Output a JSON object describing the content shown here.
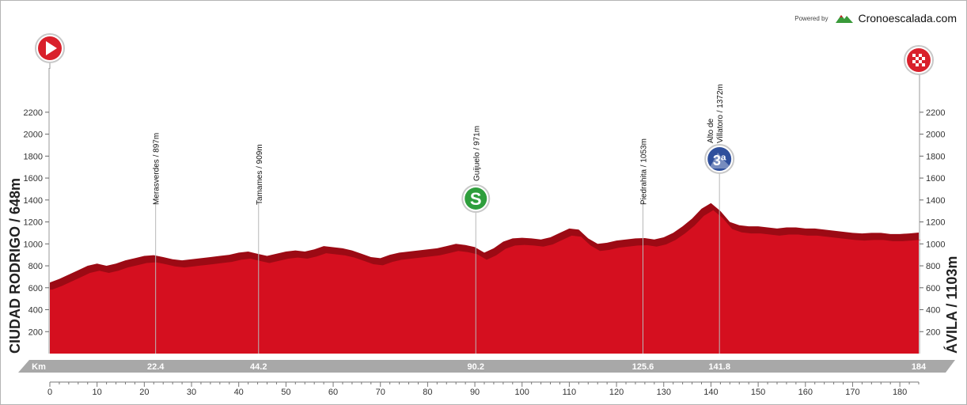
{
  "credit": {
    "powered_by": "Powered by",
    "brand": "Cronoescalada.com"
  },
  "start": {
    "label": "CIUDAD RODRIGO / 648m"
  },
  "finish": {
    "label": "ÁVILA / 1103m"
  },
  "chart_data": {
    "type": "area",
    "title": "",
    "xlabel": "Km",
    "ylabel": "",
    "xlim": [
      0,
      184
    ],
    "ylim": [
      0,
      2300
    ],
    "x_ticks": [
      0,
      10,
      20,
      30,
      40,
      50,
      60,
      70,
      80,
      90,
      100,
      110,
      120,
      130,
      140,
      150,
      160,
      170,
      180
    ],
    "y_ticks": [
      200,
      400,
      600,
      800,
      1000,
      1200,
      1400,
      1600,
      1800,
      2000,
      2200
    ],
    "fill_color": "#d50f1f",
    "bevel_color": "#9c0a14",
    "profile": {
      "x": [
        0,
        2,
        4,
        6,
        8,
        10,
        12,
        14,
        16,
        18,
        20,
        22,
        24,
        26,
        28,
        30,
        32,
        34,
        36,
        38,
        40,
        42,
        44,
        46,
        48,
        50,
        52,
        54,
        56,
        58,
        60,
        62,
        64,
        66,
        68,
        70,
        72,
        74,
        76,
        78,
        80,
        82,
        84,
        86,
        88,
        90,
        92,
        94,
        96,
        98,
        100,
        102,
        104,
        106,
        108,
        110,
        112,
        114,
        116,
        118,
        120,
        122,
        124,
        126,
        128,
        130,
        132,
        134,
        136,
        138,
        140,
        142,
        144,
        146,
        148,
        150,
        152,
        154,
        156,
        158,
        160,
        162,
        164,
        166,
        168,
        170,
        172,
        174,
        176,
        178,
        180,
        182,
        184
      ],
      "elevation": [
        648,
        680,
        720,
        760,
        800,
        820,
        800,
        820,
        850,
        870,
        890,
        897,
        880,
        860,
        850,
        860,
        870,
        880,
        890,
        900,
        920,
        930,
        909,
        890,
        910,
        930,
        940,
        930,
        950,
        980,
        970,
        960,
        940,
        910,
        880,
        870,
        900,
        920,
        930,
        940,
        950,
        960,
        980,
        1000,
        990,
        971,
        920,
        960,
        1020,
        1050,
        1055,
        1050,
        1040,
        1060,
        1100,
        1140,
        1130,
        1050,
        1000,
        1010,
        1030,
        1040,
        1050,
        1053,
        1040,
        1060,
        1100,
        1160,
        1230,
        1320,
        1372,
        1300,
        1200,
        1170,
        1160,
        1160,
        1150,
        1140,
        1150,
        1150,
        1140,
        1140,
        1130,
        1120,
        1110,
        1100,
        1095,
        1100,
        1100,
        1090,
        1090,
        1095,
        1103
      ]
    },
    "points_of_interest": [
      {
        "km": 22.4,
        "km_label": "22.4",
        "name": "Merasverdes / 897m",
        "lines": [
          "Merasverdes / 897m"
        ],
        "marker": ""
      },
      {
        "km": 44.2,
        "km_label": "44.2",
        "name": "Tamames / 909m",
        "lines": [
          "Tamames / 909m"
        ],
        "marker": ""
      },
      {
        "km": 90.2,
        "km_label": "90.2",
        "name": "Guijuelo / 971m",
        "lines": [
          "Guijuelo / 971m"
        ],
        "marker": "sprint",
        "marker_text": "S"
      },
      {
        "km": 125.6,
        "km_label": "125.6",
        "name": "Piedrahita / 1053m",
        "lines": [
          "Piedrahita / 1053m"
        ],
        "marker": ""
      },
      {
        "km": 141.8,
        "km_label": "141.8",
        "name": "Alto de Villatoro / 1372m",
        "lines": [
          "Alto de",
          "Villatoro / 1372m"
        ],
        "marker": "climb",
        "marker_text": "3ª"
      },
      {
        "km": 184,
        "km_label": "184",
        "name": "",
        "lines": [],
        "marker": ""
      }
    ],
    "start_marker": "play-icon",
    "finish_marker": "checkered-flag-icon",
    "sprint_color": "#2e9e3c",
    "climb_color": "#2f4f9c"
  }
}
